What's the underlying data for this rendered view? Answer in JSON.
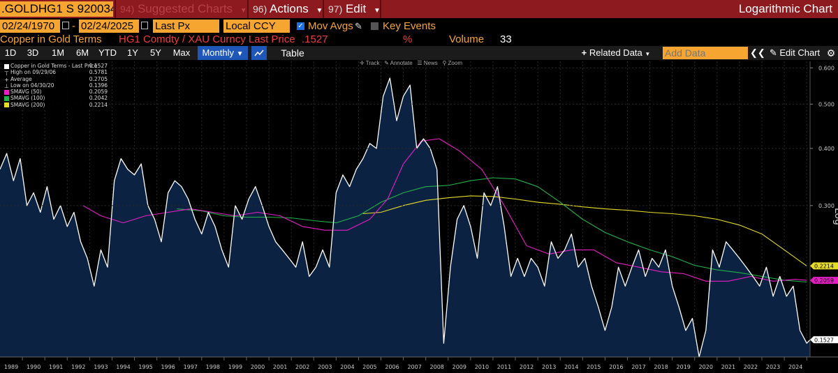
{
  "header": {
    "ticker": ".GOLDHG1 S 920034",
    "menus": [
      {
        "num": "94)",
        "label": "Suggested Charts"
      },
      {
        "num": "96)",
        "label": "Actions"
      },
      {
        "num": "97)",
        "label": "Edit"
      }
    ],
    "title": "Logarithmic Chart"
  },
  "controls": {
    "start_date": "02/24/1970",
    "dash": "-",
    "end_date": "02/24/2025",
    "field": "Last Px",
    "currency": "Local CCY",
    "mov_avgs_label": "Mov Avgs",
    "key_events_label": "Key Events"
  },
  "security": {
    "name": "Copper in Gold Terms",
    "expr": "HG1 Comdty / XAU Curncy Last Price",
    "last": ".1527",
    "pct": "%",
    "volume_label": "Volume",
    "volume": "33"
  },
  "toolbar": {
    "ranges": [
      "1D",
      "3D",
      "1M",
      "6M",
      "YTD",
      "1Y",
      "5Y",
      "Max"
    ],
    "frequency": "Monthly",
    "table_label": "Table",
    "related_data": "Related Data",
    "add_data_placeholder": "Add Data",
    "edit_chart": "Edit Chart"
  },
  "tools": {
    "track": "Track",
    "annotate": "Annotate",
    "news": "News",
    "zoom": "Zoom"
  },
  "legend": [
    {
      "label": "Copper in Gold Terms - Last Price",
      "value": "0.1527",
      "swatch": "#ffffff"
    },
    {
      "label": "High on 09/29/06",
      "value": "0.5781",
      "swatch": ""
    },
    {
      "label": "Average",
      "value": "0.2705",
      "swatch": ""
    },
    {
      "label": "Low on 04/30/20",
      "value": "0.1396",
      "swatch": ""
    },
    {
      "label": "SMAVG (50)",
      "value": "0.2059",
      "swatch": "#e81ec5"
    },
    {
      "label": "SMAVG (100)",
      "value": "0.2042",
      "swatch": "#21b24b"
    },
    {
      "label": "SMAVG (200)",
      "value": "0.2214",
      "swatch": "#e6dc2a"
    }
  ],
  "colors": {
    "price": "#ffffff",
    "area_fill": "#0c2242",
    "sma50": "#e81ec5",
    "sma100": "#21b24b",
    "sma200": "#e6dc2a",
    "accent": "#f7a531",
    "header": "#8c1a1f"
  },
  "chart_data": {
    "type": "line",
    "title": "Copper in Gold Terms",
    "ylabel": "Log",
    "y_scale": "log",
    "ylim": [
      0.14,
      0.62
    ],
    "xlim": [
      1989.0,
      2025.15
    ],
    "yticks": [
      "0.600",
      "0.500",
      "0.400",
      "0.300"
    ],
    "xticks": [
      "1989",
      "1990",
      "1991",
      "1992",
      "1993",
      "1994",
      "1995",
      "1996",
      "1997",
      "1998",
      "1999",
      "2000",
      "2001",
      "2002",
      "2003",
      "2004",
      "2005",
      "2006",
      "2007",
      "2008",
      "2009",
      "2010",
      "2011",
      "2012",
      "2013",
      "2014",
      "2015",
      "2016",
      "2017",
      "2018",
      "2019",
      "2020",
      "2021",
      "2022",
      "2023",
      "2024"
    ],
    "right_labels": [
      {
        "text": "0.2214",
        "value": 0.2214,
        "color": "#e6dc2a"
      },
      {
        "text": "0.2059",
        "value": 0.2059,
        "color": "#e81ec5"
      },
      {
        "text": "0.1527",
        "value": 0.1527,
        "color": "#ffffff"
      }
    ],
    "series": [
      {
        "name": "Copper in Gold Terms - Last Price",
        "color": "#ffffff",
        "x": [
          1989.0,
          1989.3,
          1989.6,
          1989.9,
          1990.2,
          1990.5,
          1990.8,
          1991.1,
          1991.4,
          1991.7,
          1992.0,
          1992.3,
          1992.6,
          1992.9,
          1993.2,
          1993.5,
          1993.8,
          1994.1,
          1994.4,
          1994.7,
          1995.0,
          1995.3,
          1995.6,
          1995.9,
          1996.2,
          1996.5,
          1996.8,
          1997.1,
          1997.4,
          1997.7,
          1998.0,
          1998.3,
          1998.6,
          1998.9,
          1999.2,
          1999.5,
          1999.8,
          2000.1,
          2000.4,
          2000.7,
          2001.0,
          2001.3,
          2001.6,
          2001.9,
          2002.2,
          2002.5,
          2002.8,
          2003.1,
          2003.4,
          2003.7,
          2004.0,
          2004.3,
          2004.6,
          2004.9,
          2005.2,
          2005.5,
          2005.8,
          2006.1,
          2006.4,
          2006.7,
          2007.0,
          2007.3,
          2007.6,
          2007.9,
          2008.2,
          2008.5,
          2008.8,
          2009.1,
          2009.4,
          2009.7,
          2010.0,
          2010.3,
          2010.6,
          2010.9,
          2011.2,
          2011.5,
          2011.8,
          2012.1,
          2012.4,
          2012.7,
          2013.0,
          2013.3,
          2013.6,
          2013.9,
          2014.2,
          2014.5,
          2014.8,
          2015.1,
          2015.4,
          2015.7,
          2016.0,
          2016.3,
          2016.6,
          2016.9,
          2017.2,
          2017.5,
          2017.8,
          2018.1,
          2018.4,
          2018.7,
          2019.0,
          2019.3,
          2019.6,
          2019.9,
          2020.2,
          2020.5,
          2020.8,
          2021.1,
          2021.4,
          2021.7,
          2022.0,
          2022.3,
          2022.6,
          2022.9,
          2023.2,
          2023.5,
          2023.8,
          2024.1,
          2024.4,
          2024.7,
          2025.0,
          2025.15
        ],
        "values": [
          0.36,
          0.39,
          0.34,
          0.38,
          0.3,
          0.32,
          0.29,
          0.33,
          0.28,
          0.3,
          0.27,
          0.29,
          0.25,
          0.23,
          0.2,
          0.24,
          0.22,
          0.34,
          0.38,
          0.36,
          0.35,
          0.37,
          0.3,
          0.28,
          0.25,
          0.32,
          0.34,
          0.33,
          0.31,
          0.28,
          0.26,
          0.29,
          0.27,
          0.24,
          0.22,
          0.3,
          0.28,
          0.31,
          0.33,
          0.3,
          0.27,
          0.25,
          0.24,
          0.23,
          0.22,
          0.25,
          0.21,
          0.22,
          0.24,
          0.22,
          0.32,
          0.35,
          0.33,
          0.36,
          0.38,
          0.41,
          0.4,
          0.52,
          0.57,
          0.46,
          0.52,
          0.55,
          0.4,
          0.42,
          0.4,
          0.36,
          0.15,
          0.22,
          0.28,
          0.3,
          0.27,
          0.23,
          0.32,
          0.3,
          0.33,
          0.27,
          0.21,
          0.23,
          0.21,
          0.23,
          0.22,
          0.2,
          0.25,
          0.23,
          0.24,
          0.26,
          0.22,
          0.23,
          0.2,
          0.18,
          0.16,
          0.18,
          0.22,
          0.2,
          0.22,
          0.24,
          0.21,
          0.23,
          0.22,
          0.24,
          0.2,
          0.18,
          0.16,
          0.17,
          0.14,
          0.16,
          0.24,
          0.22,
          0.25,
          0.24,
          0.23,
          0.22,
          0.21,
          0.2,
          0.22,
          0.19,
          0.21,
          0.19,
          0.2,
          0.16,
          0.15,
          0.1527
        ]
      },
      {
        "name": "SMAVG (50)",
        "color": "#e81ec5",
        "x": [
          1992.7,
          1993.5,
          1994.5,
          1995.5,
          1996.5,
          1997.5,
          1998.5,
          1999.5,
          2000.5,
          2001.5,
          2002.5,
          2003.5,
          2004.5,
          2005.5,
          2006.3,
          2007.0,
          2007.8,
          2008.6,
          2009.5,
          2010.5,
          2011.5,
          2012.5,
          2013.5,
          2014.5,
          2015.5,
          2016.5,
          2017.5,
          2018.5,
          2019.5,
          2020.5,
          2021.5,
          2022.5,
          2023.5,
          2024.5,
          2025.0
        ],
        "values": [
          0.3,
          0.285,
          0.275,
          0.285,
          0.29,
          0.295,
          0.29,
          0.285,
          0.29,
          0.285,
          0.27,
          0.265,
          0.265,
          0.28,
          0.31,
          0.37,
          0.415,
          0.42,
          0.395,
          0.36,
          0.3,
          0.245,
          0.235,
          0.24,
          0.24,
          0.225,
          0.22,
          0.215,
          0.213,
          0.205,
          0.205,
          0.21,
          0.205,
          0.207,
          0.2059
        ]
      },
      {
        "name": "SMAVG (100)",
        "color": "#21b24b",
        "x": [
          1996.9,
          1998.0,
          1999.0,
          2000.0,
          2001.0,
          2002.0,
          2003.0,
          2004.0,
          2005.0,
          2006.0,
          2007.0,
          2008.0,
          2009.0,
          2010.0,
          2011.0,
          2012.0,
          2013.0,
          2014.0,
          2015.0,
          2016.0,
          2017.0,
          2018.0,
          2019.0,
          2020.0,
          2021.0,
          2022.0,
          2023.0,
          2024.0,
          2025.0
        ],
        "values": [
          0.295,
          0.292,
          0.285,
          0.283,
          0.283,
          0.282,
          0.278,
          0.275,
          0.285,
          0.305,
          0.32,
          0.33,
          0.332,
          0.34,
          0.345,
          0.343,
          0.33,
          0.305,
          0.28,
          0.262,
          0.25,
          0.24,
          0.232,
          0.222,
          0.217,
          0.214,
          0.21,
          0.206,
          0.2042
        ]
      },
      {
        "name": "SMAVG (200)",
        "color": "#e6dc2a",
        "x": [
          2005.2,
          2006.0,
          2007.0,
          2008.0,
          2009.0,
          2010.0,
          2011.0,
          2012.0,
          2013.0,
          2014.0,
          2015.0,
          2016.0,
          2017.0,
          2018.0,
          2019.0,
          2020.0,
          2021.0,
          2022.0,
          2023.0,
          2024.0,
          2025.0
        ],
        "values": [
          0.288,
          0.29,
          0.3,
          0.308,
          0.312,
          0.315,
          0.314,
          0.31,
          0.305,
          0.302,
          0.298,
          0.295,
          0.293,
          0.29,
          0.288,
          0.285,
          0.28,
          0.272,
          0.26,
          0.24,
          0.2214
        ]
      }
    ]
  }
}
